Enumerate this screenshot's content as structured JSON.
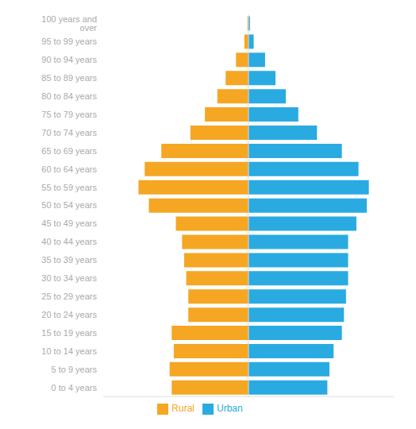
{
  "chart_data": {
    "type": "bar",
    "orientation": "horizontal",
    "stacked": true,
    "categories": [
      "0 to 4 years",
      "5 to 9 years",
      "10 to 14 years",
      "15 to 19 years",
      "20 to 24 years",
      "25 to 29 years",
      "30 to 34 years",
      "35 to 39 years",
      "40 to 44 years",
      "45 to 49 years",
      "50 to 54 years",
      "55 to 59 years",
      "60 to 64 years",
      "65 to 69 years",
      "70 to 74 years",
      "75 to 79 years",
      "80 to 84 years",
      "85 to 89 years",
      "90 to 94 years",
      "95 to 99 years",
      "100 years and over"
    ],
    "series": [
      {
        "name": "Rural",
        "color": "#F5A623",
        "values": [
          -3.7,
          -3.8,
          -3.6,
          -3.7,
          -2.9,
          -2.9,
          -3.0,
          -3.1,
          -3.2,
          -3.5,
          -4.8,
          -5.3,
          -5.0,
          -4.2,
          -2.8,
          -2.1,
          -1.5,
          -1.1,
          -0.6,
          -0.2,
          -0.05
        ]
      },
      {
        "name": "Urban",
        "color": "#29ABE2",
        "values": [
          3.8,
          3.9,
          4.1,
          4.5,
          4.6,
          4.7,
          4.8,
          4.8,
          4.8,
          5.2,
          5.7,
          5.8,
          5.3,
          4.5,
          3.3,
          2.4,
          1.8,
          1.3,
          0.8,
          0.25,
          0.07
        ]
      }
    ],
    "xlim": [
      -7,
      7
    ],
    "xticks": [],
    "tick_labels": "y",
    "grid": false,
    "legend": "bottom"
  }
}
